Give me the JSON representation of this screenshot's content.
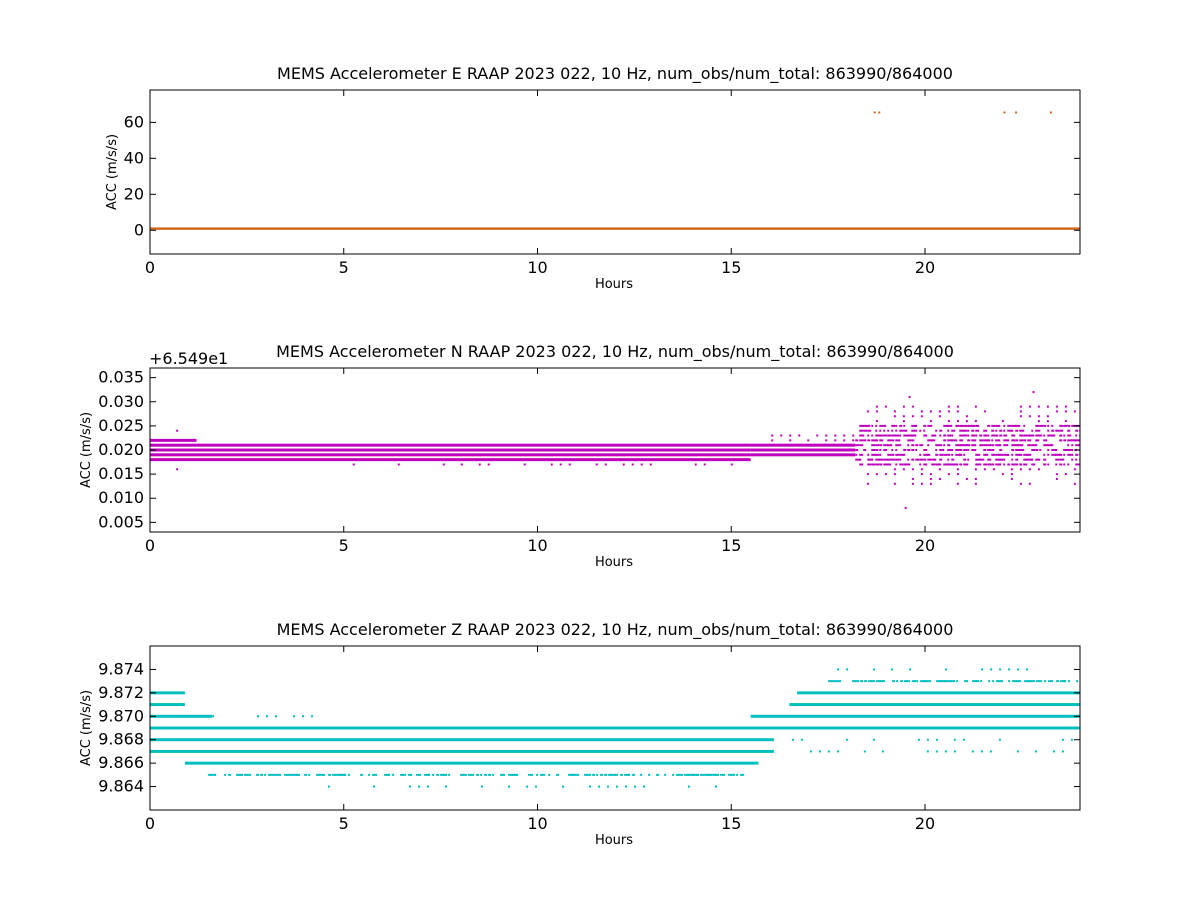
{
  "chart_data": [
    {
      "type": "scatter",
      "title": "MEMS Accelerometer E RAAP 2023 022, 10 Hz, num_obs/num_total: 863990/864000",
      "xlabel": "Hours",
      "ylabel": "ACC (m/s/s)",
      "xlim": [
        0,
        24
      ],
      "ylim": [
        -13.2,
        78.0
      ],
      "xticks": [
        "0",
        "5",
        "10",
        "15",
        "20"
      ],
      "yticks": [
        "0",
        "20",
        "40",
        "60"
      ],
      "ytick_values": [
        0,
        20,
        40,
        60
      ],
      "offset_text": "",
      "color": "#d2691e",
      "series": [
        {
          "band": [
            0,
            24,
            0.2,
            1.6
          ],
          "style": "line"
        },
        {
          "x": [
            18.7,
            18.82,
            22.05,
            22.35,
            23.25
          ],
          "y": [
            65.5,
            65.5,
            65.5,
            65.5,
            65.5
          ],
          "style": "points"
        }
      ]
    },
    {
      "type": "scatter",
      "title": "MEMS Accelerometer N RAAP 2023 022, 10 Hz, num_obs/num_total: 863990/864000",
      "xlabel": "Hours",
      "ylabel": "ACC (m/s/s)",
      "xlim": [
        0,
        24
      ],
      "ylim": [
        0.003,
        0.037
      ],
      "xticks": [
        "0",
        "5",
        "10",
        "15",
        "20"
      ],
      "yticks": [
        "0.005",
        "0.010",
        "0.015",
        "0.020",
        "0.025",
        "0.030",
        "0.035"
      ],
      "ytick_values": [
        0.005,
        0.01,
        0.015,
        0.02,
        0.025,
        0.03,
        0.035
      ],
      "offset_text": "+6.549e1",
      "color": "#bf00bf",
      "series": [
        {
          "levels": [
            0.018,
            0.019,
            0.02,
            0.021,
            0.022
          ],
          "x": [
            0,
            1.2
          ],
          "density": "dense"
        },
        {
          "levels": [
            0.018,
            0.019,
            0.02,
            0.021
          ],
          "x": [
            1.2,
            15.5
          ],
          "density": "dense"
        },
        {
          "levels": [
            0.017
          ],
          "x": [
            5.0,
            15.5
          ],
          "density": "sparse"
        },
        {
          "levels": [
            0.019,
            0.02,
            0.021
          ],
          "x": [
            15.5,
            18.2
          ],
          "density": "dense"
        },
        {
          "levels": [
            0.022,
            0.023
          ],
          "x": [
            15.8,
            18.2
          ],
          "density": "sparse"
        },
        {
          "levels": [
            0.017,
            0.018,
            0.019,
            0.02,
            0.021,
            0.022,
            0.023,
            0.024,
            0.025
          ],
          "x": [
            18.2,
            24
          ],
          "density": "medium"
        },
        {
          "levels": [
            0.013,
            0.014,
            0.015,
            0.016,
            0.026,
            0.027,
            0.028,
            0.029
          ],
          "x": [
            18.5,
            24
          ],
          "density": "sparse"
        }
      ],
      "outliers": {
        "x": [
          0.7,
          0.7,
          19.5,
          19.6,
          22.8
        ],
        "y": [
          0.016,
          0.024,
          0.008,
          0.031,
          0.032
        ]
      }
    },
    {
      "type": "scatter",
      "title": "MEMS Accelerometer Z RAAP 2023 022, 10 Hz, num_obs/num_total: 863990/864000",
      "xlabel": "Hours",
      "ylabel": "ACC (m/s/s)",
      "xlim": [
        0,
        24
      ],
      "ylim": [
        9.862,
        9.876
      ],
      "xticks": [
        "0",
        "5",
        "10",
        "15",
        "20"
      ],
      "yticks": [
        "9.864",
        "9.866",
        "9.868",
        "9.870",
        "9.872",
        "9.874"
      ],
      "ytick_values": [
        9.864,
        9.866,
        9.868,
        9.87,
        9.872,
        9.874
      ],
      "offset_text": "",
      "color": "#00bfbf",
      "series": [
        {
          "levels": [
            9.872,
            9.871
          ],
          "x": [
            0,
            0.9
          ],
          "density": "dense"
        },
        {
          "levels": [
            9.87
          ],
          "x": [
            0,
            1.6
          ],
          "density": "dense"
        },
        {
          "levels": [
            9.869
          ],
          "x": [
            0,
            24
          ],
          "density": "dense"
        },
        {
          "levels": [
            9.868,
            9.867
          ],
          "x": [
            0,
            16.1
          ],
          "density": "dense"
        },
        {
          "levels": [
            9.866
          ],
          "x": [
            0.9,
            15.7
          ],
          "density": "dense"
        },
        {
          "levels": [
            9.865
          ],
          "x": [
            1.5,
            15.3
          ],
          "density": "medium"
        },
        {
          "levels": [
            9.864
          ],
          "x": [
            3.2,
            15.0
          ],
          "density": "sparse"
        },
        {
          "levels": [
            9.87
          ],
          "x": [
            15.5,
            24
          ],
          "density": "dense"
        },
        {
          "levels": [
            9.871
          ],
          "x": [
            16.5,
            24
          ],
          "density": "dense"
        },
        {
          "levels": [
            9.872
          ],
          "x": [
            16.7,
            24
          ],
          "density": "dense"
        },
        {
          "levels": [
            9.873
          ],
          "x": [
            17.5,
            24
          ],
          "density": "medium"
        },
        {
          "levels": [
            9.874
          ],
          "x": [
            17.5,
            22.8
          ],
          "density": "sparse"
        },
        {
          "levels": [
            9.868
          ],
          "x": [
            16.1,
            24
          ],
          "density": "sparse"
        },
        {
          "levels": [
            9.867
          ],
          "x": [
            16.1,
            24
          ],
          "density": "sparse"
        },
        {
          "levels": [
            9.87
          ],
          "x": [
            1.6,
            4.2
          ],
          "density": "sparse"
        }
      ]
    }
  ]
}
